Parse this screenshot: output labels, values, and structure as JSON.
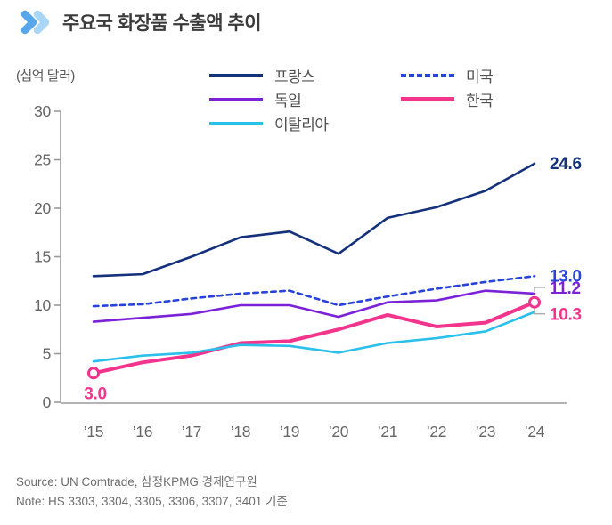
{
  "header": {
    "title": "주요국 화장품 수출액 추이"
  },
  "unit_label": "(십억 달러)",
  "colors": {
    "chevron_dark": "#57A7EA",
    "chevron_light": "#A9D5F6",
    "title_text": "#3B3B3B",
    "axis": "#9B9B9B",
    "tick_text": "#666666",
    "leader": "#ABABAB",
    "legend_text": "#4F4F4F",
    "footer_text": "#6E6E6E"
  },
  "chart_data": {
    "type": "line",
    "title": "주요국 화장품 수출액 추이",
    "ylabel": "(십억 달러)",
    "categories": [
      "’15",
      "’16",
      "’17",
      "’18",
      "’19",
      "’20",
      "’21",
      "’22",
      "’23",
      "’24"
    ],
    "ylim": [
      0,
      30
    ],
    "yticks": [
      0,
      5,
      10,
      15,
      20,
      25,
      30
    ],
    "grid": false,
    "legend_position": "top",
    "series": [
      {
        "key": "france",
        "name": "프랑스",
        "color": "#15317B",
        "style": "solid",
        "width": 2.6,
        "values": [
          13.0,
          13.2,
          15.0,
          17.0,
          17.6,
          15.3,
          19.0,
          20.1,
          21.8,
          24.6
        ],
        "end_label": "24.6"
      },
      {
        "key": "usa",
        "name": "미국",
        "color": "#2743D9",
        "style": "dashed",
        "width": 2.6,
        "values": [
          9.9,
          10.1,
          10.7,
          11.2,
          11.5,
          10.0,
          10.9,
          11.7,
          12.4,
          13.0
        ],
        "end_label": "13.0"
      },
      {
        "key": "germany",
        "name": "독일",
        "color": "#7B22D8",
        "style": "solid",
        "width": 2.6,
        "values": [
          8.3,
          8.7,
          9.1,
          10.0,
          10.0,
          8.8,
          10.3,
          10.5,
          11.5,
          11.2
        ],
        "end_label": "11.2",
        "end_leader": "up"
      },
      {
        "key": "korea",
        "name": "한국",
        "color": "#F2348D",
        "style": "solid",
        "width": 4,
        "values": [
          3.0,
          4.1,
          4.8,
          6.1,
          6.3,
          7.5,
          9.0,
          7.8,
          8.2,
          10.3
        ],
        "end_label": "10.3",
        "end_leader": "down",
        "start_label": "3.0",
        "markers": [
          "first",
          "last"
        ]
      },
      {
        "key": "italy",
        "name": "이탈리아",
        "color": "#2BBFEB",
        "style": "solid",
        "width": 2.6,
        "values": [
          4.2,
          4.8,
          5.1,
          5.9,
          5.8,
          5.1,
          6.1,
          6.6,
          7.3,
          9.3
        ]
      }
    ]
  },
  "legend": {
    "items": [
      {
        "series": 0,
        "col": 0,
        "row": 0
      },
      {
        "series": 1,
        "col": 1,
        "row": 0
      },
      {
        "series": 2,
        "col": 0,
        "row": 1
      },
      {
        "series": 3,
        "col": 1,
        "row": 1
      },
      {
        "series": 4,
        "col": 0,
        "row": 2
      }
    ]
  },
  "footer": {
    "source": "Source: UN Comtrade, 삼정KPMG 경제연구원",
    "note": "Note: HS 3303, 3304, 3305, 3306, 3307, 3401 기준"
  }
}
